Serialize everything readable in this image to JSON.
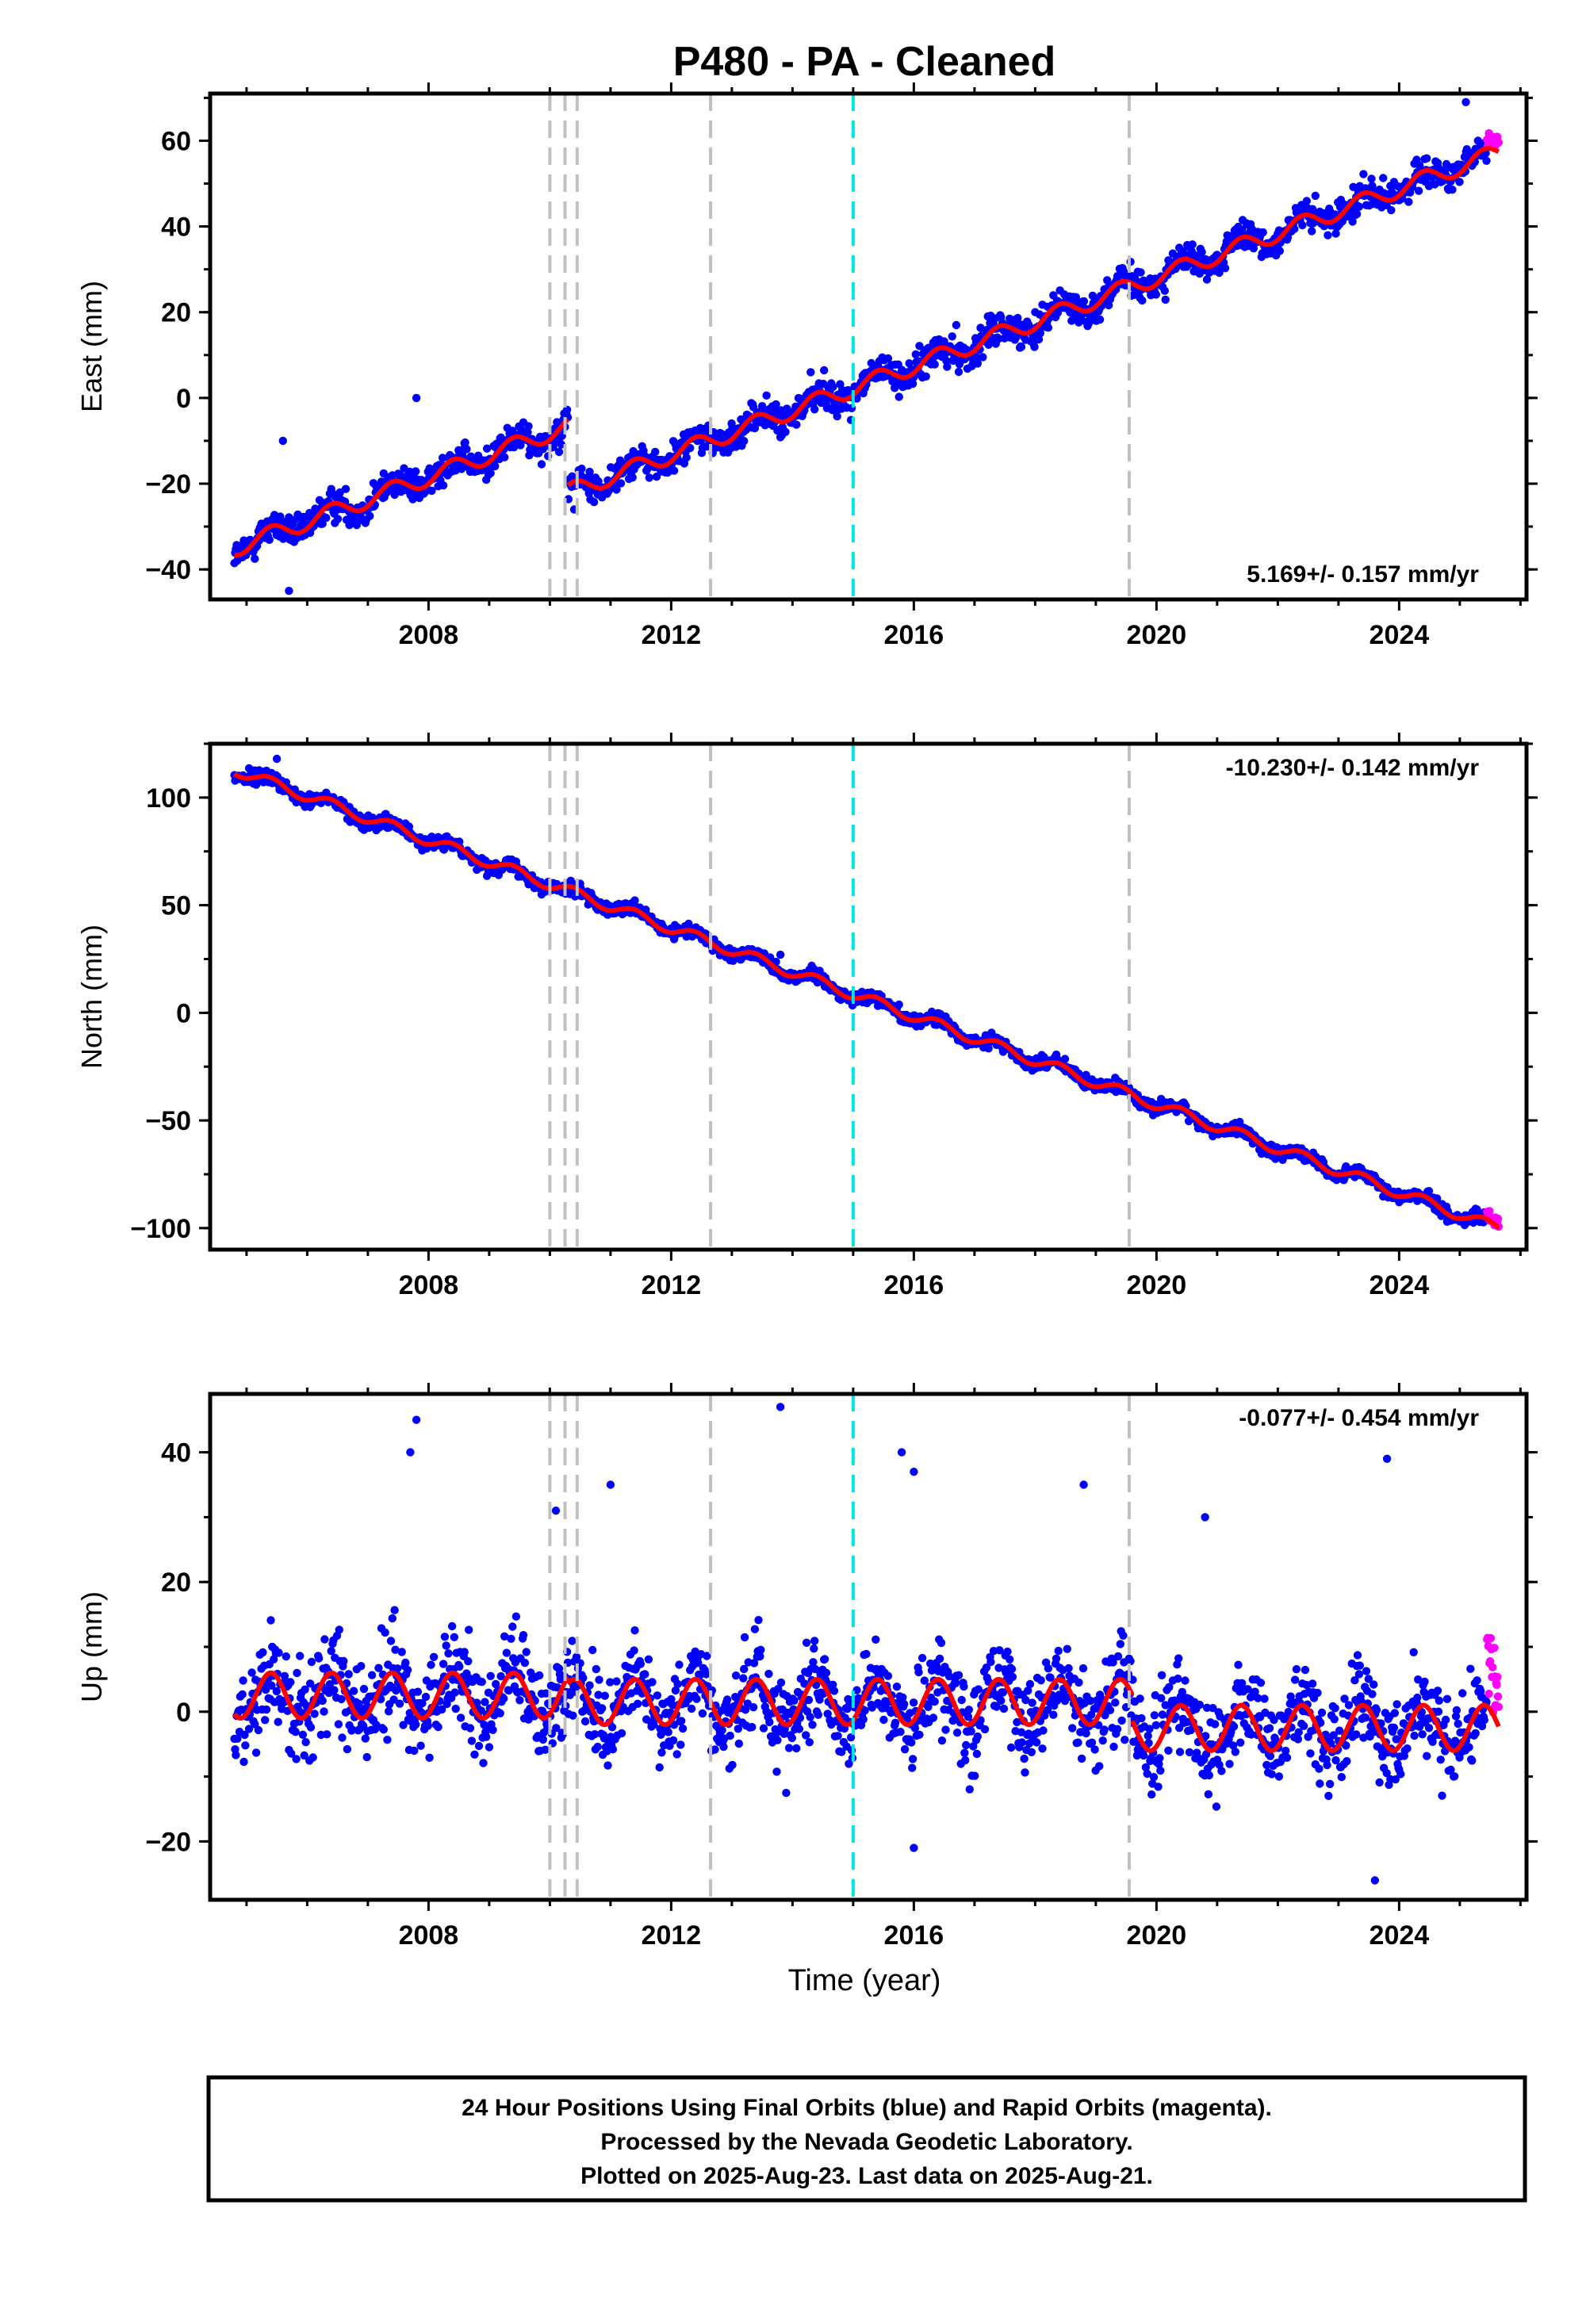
{
  "figure": {
    "title": "P480  - PA - Cleaned",
    "xlabel": "Time (year)",
    "footer": [
      "24 Hour Positions Using Final Orbits (blue) and Rapid Orbits (magenta).",
      "Processed by the Nevada Geodetic Laboratory.",
      "Plotted on 2025-Aug-23. Last data on 2025-Aug-21."
    ],
    "colors": {
      "final_orbits": "#0000ff",
      "rapid_orbits": "#ff00ff",
      "model": "#ff0000",
      "equipment_change": "#c0c0c0",
      "event_line": "#00e5e5"
    }
  },
  "chart_data": [
    {
      "type": "scatter",
      "name": "east",
      "ylabel": "East (mm)",
      "rate_label": "5.169+/- 0.157 mm/yr",
      "xlim": [
        2004.4,
        2026.1
      ],
      "ylim": [
        -47,
        71
      ],
      "xticks": [
        2008,
        2012,
        2016,
        2020,
        2024
      ],
      "yticks": [
        -40,
        -20,
        0,
        20,
        40,
        60
      ],
      "ytick_labels": [
        "−40",
        "−20",
        "0",
        "20",
        "40",
        "60"
      ],
      "start_year": 2004.8,
      "end_year": 2025.64,
      "rapid_start_year": 2025.45,
      "rate_mm_per_yr": 5.169,
      "series": [
        {
          "name": "model",
          "segments": [
            {
              "from": 2004.8,
              "to": 2010.3,
              "offset_at_start": -35,
              "rate": 5.169,
              "seasonal_amp": 2.0
            },
            {
              "from": 2010.3,
              "to": 2025.64,
              "offset_at_start": -22,
              "rate": 5.169,
              "seasonal_amp": 2.0
            }
          ]
        }
      ],
      "scatter_sd": 2.5,
      "outliers": [
        [
          2005.6,
          -10
        ],
        [
          2005.7,
          -45
        ],
        [
          2007.8,
          0
        ],
        [
          2010.4,
          -26
        ],
        [
          2014.3,
          6
        ],
        [
          2016.7,
          17
        ],
        [
          2018.0,
          20
        ],
        [
          2025.1,
          69
        ],
        [
          2025.3,
          60
        ]
      ]
    },
    {
      "type": "scatter",
      "name": "north",
      "ylabel": "North (mm)",
      "rate_label": "-10.230+/- 0.142 mm/yr",
      "xlim": [
        2004.4,
        2026.1
      ],
      "ylim": [
        -110,
        125
      ],
      "xticks": [
        2008,
        2012,
        2016,
        2020,
        2024
      ],
      "yticks": [
        -100,
        -50,
        0,
        50,
        100
      ],
      "ytick_labels": [
        "−100",
        "−50",
        "0",
        "50",
        "100"
      ],
      "start_year": 2004.8,
      "end_year": 2025.64,
      "rapid_start_year": 2025.45,
      "rate_mm_per_yr": -10.23,
      "series": [
        {
          "name": "model",
          "segments": [
            {
              "from": 2004.8,
              "to": 2025.64,
              "offset_at_start": 113,
              "rate": -10.23,
              "seasonal_amp": 2.5
            }
          ]
        }
      ],
      "scatter_sd": 2.2,
      "outliers": [
        [
          2005.5,
          118
        ],
        [
          2010.5,
          60
        ],
        [
          2013.8,
          27
        ],
        [
          2019.5,
          -33
        ]
      ]
    },
    {
      "type": "scatter",
      "name": "up",
      "ylabel": "Up (mm)",
      "rate_label": "-0.077+/- 0.454 mm/yr",
      "xlim": [
        2004.4,
        2026.1
      ],
      "ylim": [
        -29,
        49
      ],
      "xticks": [
        2008,
        2012,
        2016,
        2020,
        2024
      ],
      "yticks": [
        -20,
        0,
        20,
        40
      ],
      "ytick_labels": [
        "−20",
        "0",
        "20",
        "40"
      ],
      "start_year": 2004.8,
      "end_year": 2025.64,
      "rapid_start_year": 2025.45,
      "rate_mm_per_yr": -0.077,
      "series": [
        {
          "name": "model",
          "segments": [
            {
              "from": 2004.8,
              "to": 2010.3,
              "offset_at_start": 2.5,
              "rate": 0.0,
              "seasonal_amp": 3.5
            },
            {
              "from": 2010.3,
              "to": 2019.6,
              "offset_at_start": 1.5,
              "rate": 0.0,
              "seasonal_amp": 3.5
            },
            {
              "from": 2019.6,
              "to": 2025.64,
              "offset_at_start": -2.5,
              "rate": 0.0,
              "seasonal_amp": 3.5
            }
          ]
        }
      ],
      "scatter_sd": 5.0,
      "outliers": [
        [
          2007.8,
          45
        ],
        [
          2007.7,
          40
        ],
        [
          2013.8,
          47
        ],
        [
          2015.8,
          40
        ],
        [
          2016.0,
          37
        ],
        [
          2023.8,
          39
        ],
        [
          2023.6,
          -26
        ],
        [
          2016.0,
          -21
        ],
        [
          2010.1,
          31
        ],
        [
          2020.8,
          30
        ],
        [
          2018.8,
          35
        ],
        [
          2011.0,
          35
        ]
      ]
    }
  ],
  "vertical_lines": {
    "equipment_change_years": [
      2010.0,
      2010.25,
      2010.45,
      2012.65,
      2019.55
    ],
    "event_years": [
      2015.0
    ]
  }
}
